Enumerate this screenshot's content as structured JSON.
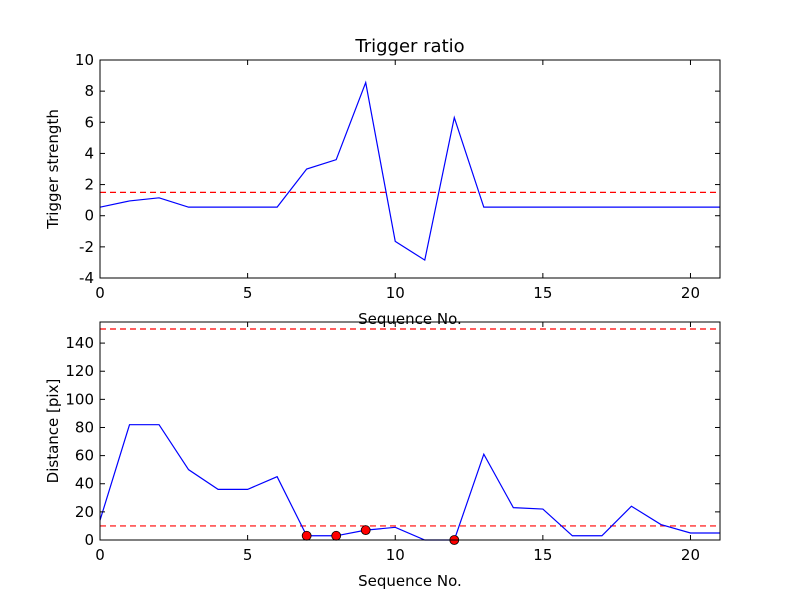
{
  "chart_data": [
    {
      "type": "line",
      "title": "Trigger ratio",
      "xlabel": "Sequence No.",
      "ylabel": "Trigger strength",
      "xlim": [
        0,
        21
      ],
      "ylim": [
        -4,
        10
      ],
      "xticks": [
        0,
        5,
        10,
        15,
        20
      ],
      "yticks": [
        -4,
        -2,
        0,
        2,
        4,
        6,
        8,
        10
      ],
      "grid": false,
      "series": [
        {
          "color": "#0000ff",
          "x": [
            0,
            1,
            2,
            3,
            4,
            5,
            6,
            7,
            8,
            9,
            10,
            11,
            12,
            13,
            14,
            15,
            16,
            17,
            18,
            19,
            20,
            21
          ],
          "y": [
            0.55,
            0.95,
            1.15,
            0.55,
            0.55,
            0.55,
            0.55,
            3.0,
            3.6,
            8.55,
            -1.65,
            -2.85,
            6.3,
            0.55,
            0.55,
            0.55,
            0.55,
            0.55,
            0.55,
            0.55,
            0.55,
            0.55
          ]
        }
      ],
      "hlines": [
        {
          "y": 1.5,
          "color": "#ff0000",
          "style": "dashed"
        }
      ],
      "markers": []
    },
    {
      "type": "line",
      "title": "",
      "xlabel": "Sequence No.",
      "ylabel": "Distance [pix]",
      "xlim": [
        0,
        21
      ],
      "ylim": [
        0,
        155
      ],
      "xticks": [
        0,
        5,
        10,
        15,
        20
      ],
      "yticks": [
        0,
        20,
        40,
        60,
        80,
        100,
        120,
        140
      ],
      "grid": false,
      "series": [
        {
          "color": "#0000ff",
          "x": [
            0,
            1,
            2,
            3,
            4,
            5,
            6,
            7,
            8,
            9,
            10,
            11,
            12,
            13,
            14,
            15,
            16,
            17,
            18,
            19,
            20,
            21
          ],
          "y": [
            14,
            82,
            82,
            50,
            36,
            36,
            45,
            3,
            3,
            7,
            9,
            0,
            0,
            61,
            23,
            22,
            3,
            3,
            24,
            11,
            5,
            5
          ]
        }
      ],
      "hlines": [
        {
          "y": 150,
          "color": "#ff0000",
          "style": "dashed"
        },
        {
          "y": 10,
          "color": "#ff0000",
          "style": "dashed"
        }
      ],
      "markers": [
        {
          "x": 7,
          "y": 3,
          "color": "#ff0000"
        },
        {
          "x": 8,
          "y": 3,
          "color": "#ff0000"
        },
        {
          "x": 9,
          "y": 7,
          "color": "#ff0000"
        },
        {
          "x": 12,
          "y": 0,
          "color": "#ff0000"
        }
      ]
    }
  ]
}
